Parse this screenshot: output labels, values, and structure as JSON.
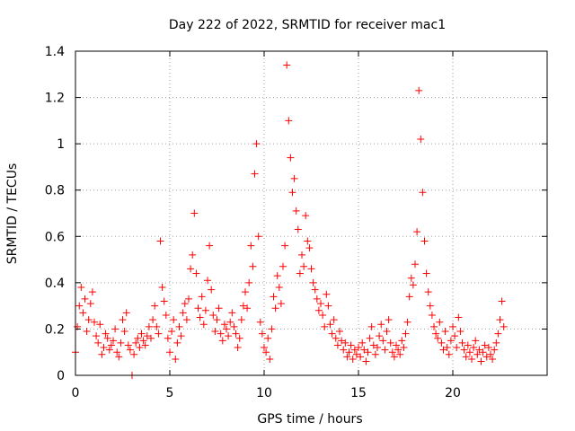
{
  "chart_data": {
    "type": "scatter",
    "title": "Day 222 of 2022, SRMTID for receiver mac1",
    "xlabel": "GPS time / hours",
    "ylabel": "SRMTID / TECUs",
    "xlim": [
      0,
      25
    ],
    "ylim": [
      0,
      1.4
    ],
    "xticks": [
      0,
      5,
      10,
      15,
      20
    ],
    "xtick_labels": [
      "0",
      "5",
      "10",
      "15",
      "20"
    ],
    "yticks": [
      0,
      0.2,
      0.4,
      0.6,
      0.8,
      1,
      1.2,
      1.4
    ],
    "ytick_labels": [
      "0",
      "0.2",
      "0.4",
      "0.6",
      "0.8",
      "1",
      "1.2",
      "1.4"
    ],
    "grid": true,
    "marker": "+",
    "color": "#ff0000",
    "series": [
      {
        "name": "SRMTID",
        "points": [
          [
            0.0,
            0.1
          ],
          [
            0.1,
            0.21
          ],
          [
            0.2,
            0.3
          ],
          [
            0.3,
            0.38
          ],
          [
            0.4,
            0.27
          ],
          [
            0.5,
            0.33
          ],
          [
            0.6,
            0.19
          ],
          [
            0.7,
            0.24
          ],
          [
            0.8,
            0.31
          ],
          [
            0.9,
            0.36
          ],
          [
            1.0,
            0.23
          ],
          [
            1.1,
            0.17
          ],
          [
            1.2,
            0.14
          ],
          [
            1.3,
            0.22
          ],
          [
            1.4,
            0.09
          ],
          [
            1.5,
            0.12
          ],
          [
            1.6,
            0.18
          ],
          [
            1.7,
            0.16
          ],
          [
            1.8,
            0.11
          ],
          [
            1.9,
            0.13
          ],
          [
            2.0,
            0.15
          ],
          [
            2.1,
            0.2
          ],
          [
            2.2,
            0.1
          ],
          [
            2.3,
            0.08
          ],
          [
            2.4,
            0.14
          ],
          [
            2.5,
            0.24
          ],
          [
            2.6,
            0.19
          ],
          [
            2.7,
            0.27
          ],
          [
            2.8,
            0.13
          ],
          [
            2.9,
            0.11
          ],
          [
            3.0,
            0.0
          ],
          [
            3.1,
            0.09
          ],
          [
            3.2,
            0.14
          ],
          [
            3.3,
            0.16
          ],
          [
            3.4,
            0.12
          ],
          [
            3.5,
            0.18
          ],
          [
            3.6,
            0.15
          ],
          [
            3.7,
            0.13
          ],
          [
            3.8,
            0.17
          ],
          [
            3.9,
            0.21
          ],
          [
            4.0,
            0.16
          ],
          [
            4.1,
            0.24
          ],
          [
            4.2,
            0.3
          ],
          [
            4.3,
            0.21
          ],
          [
            4.4,
            0.18
          ],
          [
            4.5,
            0.58
          ],
          [
            4.6,
            0.38
          ],
          [
            4.7,
            0.32
          ],
          [
            4.8,
            0.26
          ],
          [
            4.9,
            0.16
          ],
          [
            5.0,
            0.1
          ],
          [
            5.1,
            0.19
          ],
          [
            5.2,
            0.24
          ],
          [
            5.3,
            0.07
          ],
          [
            5.4,
            0.14
          ],
          [
            5.5,
            0.21
          ],
          [
            5.6,
            0.17
          ],
          [
            5.7,
            0.27
          ],
          [
            5.8,
            0.31
          ],
          [
            5.9,
            0.24
          ],
          [
            6.0,
            0.33
          ],
          [
            6.1,
            0.46
          ],
          [
            6.2,
            0.52
          ],
          [
            6.3,
            0.7
          ],
          [
            6.4,
            0.44
          ],
          [
            6.5,
            0.29
          ],
          [
            6.6,
            0.25
          ],
          [
            6.7,
            0.34
          ],
          [
            6.8,
            0.22
          ],
          [
            6.9,
            0.28
          ],
          [
            7.0,
            0.41
          ],
          [
            7.1,
            0.56
          ],
          [
            7.2,
            0.37
          ],
          [
            7.3,
            0.26
          ],
          [
            7.4,
            0.19
          ],
          [
            7.5,
            0.24
          ],
          [
            7.6,
            0.29
          ],
          [
            7.7,
            0.18
          ],
          [
            7.8,
            0.15
          ],
          [
            7.9,
            0.22
          ],
          [
            8.0,
            0.2
          ],
          [
            8.1,
            0.17
          ],
          [
            8.2,
            0.23
          ],
          [
            8.3,
            0.27
          ],
          [
            8.4,
            0.21
          ],
          [
            8.5,
            0.18
          ],
          [
            8.6,
            0.12
          ],
          [
            8.7,
            0.16
          ],
          [
            8.8,
            0.24
          ],
          [
            8.9,
            0.3
          ],
          [
            9.0,
            0.36
          ],
          [
            9.1,
            0.29
          ],
          [
            9.2,
            0.4
          ],
          [
            9.3,
            0.56
          ],
          [
            9.4,
            0.47
          ],
          [
            9.5,
            0.87
          ],
          [
            9.6,
            1.0
          ],
          [
            9.7,
            0.6
          ],
          [
            9.8,
            0.23
          ],
          [
            9.9,
            0.18
          ],
          [
            10.0,
            0.12
          ],
          [
            10.1,
            0.1
          ],
          [
            10.2,
            0.16
          ],
          [
            10.3,
            0.07
          ],
          [
            10.4,
            0.2
          ],
          [
            10.5,
            0.34
          ],
          [
            10.6,
            0.29
          ],
          [
            10.7,
            0.43
          ],
          [
            10.8,
            0.38
          ],
          [
            10.9,
            0.31
          ],
          [
            11.0,
            0.47
          ],
          [
            11.1,
            0.56
          ],
          [
            11.2,
            1.34
          ],
          [
            11.3,
            1.1
          ],
          [
            11.4,
            0.94
          ],
          [
            11.5,
            0.79
          ],
          [
            11.6,
            0.85
          ],
          [
            11.7,
            0.71
          ],
          [
            11.8,
            0.63
          ],
          [
            11.9,
            0.44
          ],
          [
            12.0,
            0.52
          ],
          [
            12.1,
            0.47
          ],
          [
            12.2,
            0.69
          ],
          [
            12.3,
            0.58
          ],
          [
            12.4,
            0.55
          ],
          [
            12.5,
            0.46
          ],
          [
            12.6,
            0.4
          ],
          [
            12.7,
            0.37
          ],
          [
            12.8,
            0.33
          ],
          [
            12.9,
            0.28
          ],
          [
            13.0,
            0.31
          ],
          [
            13.1,
            0.26
          ],
          [
            13.2,
            0.21
          ],
          [
            13.3,
            0.35
          ],
          [
            13.4,
            0.3
          ],
          [
            13.5,
            0.22
          ],
          [
            13.6,
            0.18
          ],
          [
            13.7,
            0.24
          ],
          [
            13.8,
            0.16
          ],
          [
            13.9,
            0.13
          ],
          [
            14.0,
            0.19
          ],
          [
            14.1,
            0.15
          ],
          [
            14.2,
            0.11
          ],
          [
            14.3,
            0.14
          ],
          [
            14.4,
            0.08
          ],
          [
            14.5,
            0.1
          ],
          [
            14.6,
            0.13
          ],
          [
            14.7,
            0.07
          ],
          [
            14.8,
            0.11
          ],
          [
            14.9,
            0.09
          ],
          [
            15.0,
            0.12
          ],
          [
            15.1,
            0.08
          ],
          [
            15.2,
            0.14
          ],
          [
            15.3,
            0.11
          ],
          [
            15.4,
            0.06
          ],
          [
            15.5,
            0.1
          ],
          [
            15.6,
            0.16
          ],
          [
            15.7,
            0.21
          ],
          [
            15.8,
            0.13
          ],
          [
            15.9,
            0.09
          ],
          [
            16.0,
            0.12
          ],
          [
            16.1,
            0.17
          ],
          [
            16.2,
            0.22
          ],
          [
            16.3,
            0.15
          ],
          [
            16.4,
            0.11
          ],
          [
            16.5,
            0.19
          ],
          [
            16.6,
            0.24
          ],
          [
            16.7,
            0.14
          ],
          [
            16.8,
            0.1
          ],
          [
            16.9,
            0.08
          ],
          [
            17.0,
            0.13
          ],
          [
            17.1,
            0.11
          ],
          [
            17.2,
            0.09
          ],
          [
            17.3,
            0.15
          ],
          [
            17.4,
            0.12
          ],
          [
            17.5,
            0.18
          ],
          [
            17.6,
            0.23
          ],
          [
            17.7,
            0.34
          ],
          [
            17.8,
            0.42
          ],
          [
            17.9,
            0.39
          ],
          [
            18.0,
            0.48
          ],
          [
            18.1,
            0.62
          ],
          [
            18.2,
            1.23
          ],
          [
            18.3,
            1.02
          ],
          [
            18.4,
            0.79
          ],
          [
            18.5,
            0.58
          ],
          [
            18.6,
            0.44
          ],
          [
            18.7,
            0.36
          ],
          [
            18.8,
            0.3
          ],
          [
            18.9,
            0.26
          ],
          [
            19.0,
            0.21
          ],
          [
            19.1,
            0.18
          ],
          [
            19.2,
            0.16
          ],
          [
            19.3,
            0.23
          ],
          [
            19.4,
            0.14
          ],
          [
            19.5,
            0.11
          ],
          [
            19.6,
            0.19
          ],
          [
            19.7,
            0.12
          ],
          [
            19.8,
            0.09
          ],
          [
            19.9,
            0.15
          ],
          [
            20.0,
            0.21
          ],
          [
            20.1,
            0.17
          ],
          [
            20.2,
            0.12
          ],
          [
            20.3,
            0.25
          ],
          [
            20.4,
            0.19
          ],
          [
            20.5,
            0.14
          ],
          [
            20.6,
            0.11
          ],
          [
            20.7,
            0.08
          ],
          [
            20.8,
            0.13
          ],
          [
            20.9,
            0.1
          ],
          [
            21.0,
            0.07
          ],
          [
            21.1,
            0.12
          ],
          [
            21.2,
            0.15
          ],
          [
            21.3,
            0.09
          ],
          [
            21.4,
            0.11
          ],
          [
            21.5,
            0.06
          ],
          [
            21.6,
            0.1
          ],
          [
            21.7,
            0.13
          ],
          [
            21.8,
            0.08
          ],
          [
            21.9,
            0.12
          ],
          [
            22.0,
            0.09
          ],
          [
            22.1,
            0.07
          ],
          [
            22.2,
            0.11
          ],
          [
            22.3,
            0.14
          ],
          [
            22.4,
            0.18
          ],
          [
            22.5,
            0.24
          ],
          [
            22.6,
            0.32
          ],
          [
            22.7,
            0.21
          ]
        ]
      }
    ]
  }
}
